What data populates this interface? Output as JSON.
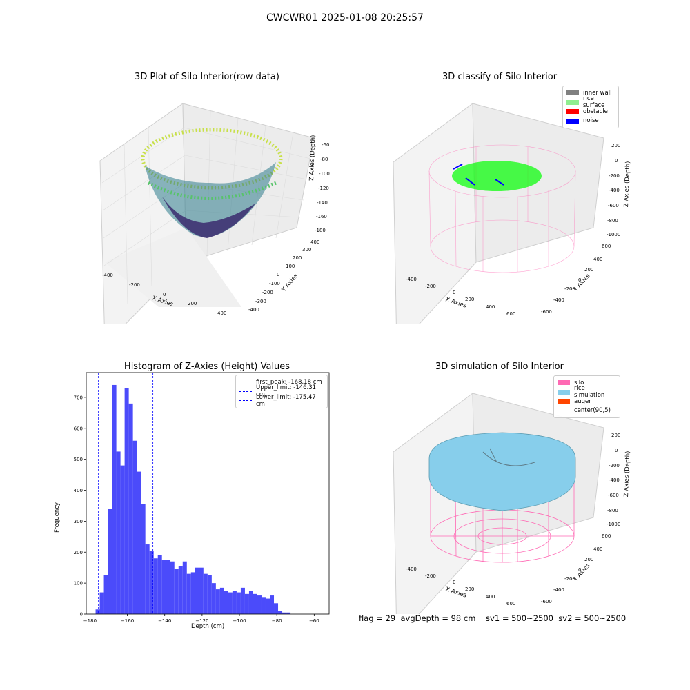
{
  "suptitle": "CWCWR01 2025-01-08 20:25:57",
  "footer": "flag = 29  avgDepth = 98 cm    sv1 = 500~2500  sv2 = 500~2500",
  "chart_data": [
    {
      "type": "scatter",
      "title": "3D Plot of Silo Interior(row data)",
      "xlabel": "X Axies",
      "ylabel": "Y Axies",
      "zlabel": "Z Axies (Depth)",
      "x_ticks": [
        "-400",
        "-200",
        "0",
        "200",
        "400"
      ],
      "y_ticks": [
        "-400",
        "-300",
        "-200",
        "-100",
        "0",
        "100",
        "200",
        "300",
        "400"
      ],
      "z_ticks": [
        "-60",
        "-80",
        "-100",
        "-120",
        "-140",
        "-160",
        "-180"
      ],
      "colormap": "viridis",
      "point_cloud": "bowl-shaped rice surface, depth approx -60 at rim to -180 at centre"
    },
    {
      "type": "scatter",
      "title": "3D classify of Silo Interior",
      "xlabel": "X Axies",
      "ylabel": "Y Axies",
      "zlabel": "Z Axies (Depth)",
      "x_ticks": [
        "-400",
        "-200",
        "0",
        "200",
        "400",
        "600"
      ],
      "y_ticks": [
        "-600",
        "-400",
        "-200",
        "0",
        "200",
        "400",
        "600"
      ],
      "z_ticks": [
        "200",
        "0",
        "-200",
        "-400",
        "-600",
        "-800",
        "-1000"
      ],
      "legend": [
        {
          "label": "inner wall",
          "color": "#808080"
        },
        {
          "label": "rice surface",
          "color": "#90ee90"
        },
        {
          "label": "obstacle",
          "color": "#ff0000"
        },
        {
          "label": "noise",
          "color": "#0000ff"
        }
      ]
    },
    {
      "type": "bar",
      "title": "Histogram of Z-Axies (Height) Values",
      "xlabel": "Depth (cm)",
      "ylabel": "Frequency",
      "xlim": [
        -182,
        -52
      ],
      "ylim": [
        0,
        780
      ],
      "x_ticks": [
        "−180",
        "−160",
        "−140",
        "−120",
        "−100",
        "−80",
        "−60"
      ],
      "y_ticks": [
        "0",
        "100",
        "200",
        "300",
        "400",
        "500",
        "600",
        "700"
      ],
      "bin_start": -177,
      "bin_width": 2.22,
      "color": "#4b4bfa",
      "values": [
        15,
        70,
        125,
        340,
        740,
        525,
        480,
        730,
        680,
        560,
        460,
        355,
        225,
        205,
        180,
        190,
        175,
        175,
        170,
        145,
        155,
        170,
        130,
        135,
        150,
        150,
        130,
        125,
        100,
        80,
        85,
        75,
        70,
        75,
        70,
        85,
        65,
        75,
        65,
        60,
        55,
        50,
        60,
        35,
        10,
        5,
        5
      ],
      "lines": [
        {
          "label": "first_peak: -168.18 cm",
          "x": -168.18,
          "color": "#ff0000"
        },
        {
          "label": "Upper_limit: -146.31 cm",
          "x": -146.31,
          "color": "#0000ff"
        },
        {
          "label": "Lower_limit: -175.47 cm",
          "x": -175.47,
          "color": "#0000ff"
        }
      ]
    },
    {
      "type": "surface",
      "title": "3D simulation of Silo Interior",
      "xlabel": "X Axies",
      "ylabel": "Y Axies",
      "zlabel": "Z Axies (Depth)",
      "x_ticks": [
        "-400",
        "-200",
        "0",
        "200",
        "400",
        "600"
      ],
      "y_ticks": [
        "-600",
        "-400",
        "-200",
        "0",
        "200",
        "400",
        "600"
      ],
      "z_ticks": [
        "200",
        "0",
        "-200",
        "-400",
        "-600",
        "-800",
        "-1000"
      ],
      "legend": [
        {
          "label": "silo",
          "color": "#ff69b4"
        },
        {
          "label": "rice simulation",
          "color": "#87ceeb"
        },
        {
          "label": "auger",
          "color": "#ff4500"
        },
        {
          "label": "center(90,5)",
          "color": ""
        }
      ]
    }
  ]
}
